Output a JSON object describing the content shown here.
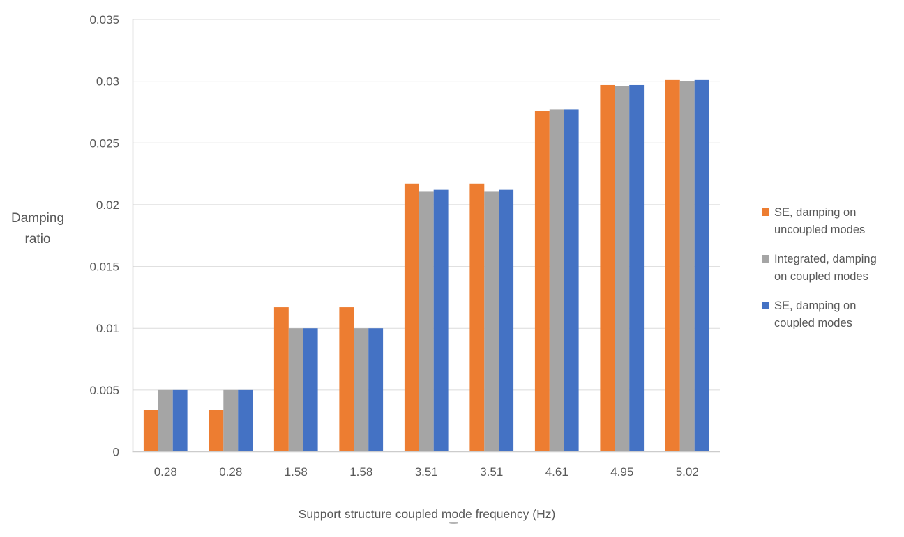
{
  "figure": {
    "background": "#FFFFFF",
    "text_color": "#595959",
    "gridline_color": "#DBDBDB",
    "axis_line_color": "#CCCCCC"
  },
  "chart_data": {
    "type": "bar",
    "title": "",
    "xlabel": "Support structure coupled mode frequency (Hz)",
    "ylabel": "Damping ratio",
    "ylabel_lines": [
      "Damping",
      "ratio"
    ],
    "categories": [
      "0.28",
      "0.28",
      "1.58",
      "1.58",
      "3.51",
      "3.51",
      "4.61",
      "4.95",
      "5.02"
    ],
    "series": [
      {
        "name": "SE, damping on uncoupled modes",
        "label_lines": [
          "SE, damping on",
          "uncoupled modes"
        ],
        "color": "#ED7D31",
        "values": [
          0.0034,
          0.0034,
          0.0117,
          0.0117,
          0.0217,
          0.0217,
          0.0276,
          0.0297,
          0.0301
        ]
      },
      {
        "name": "Integrated, damping on coupled modes",
        "label_lines": [
          "Integrated, damping",
          "on coupled modes"
        ],
        "color": "#A5A5A5",
        "values": [
          0.005,
          0.005,
          0.01,
          0.01,
          0.0211,
          0.0211,
          0.0277,
          0.0296,
          0.03
        ]
      },
      {
        "name": "SE, damping on coupled modes",
        "label_lines": [
          "SE, damping on",
          "coupled modes"
        ],
        "color": "#4472C4",
        "values": [
          0.005,
          0.005,
          0.01,
          0.01,
          0.0212,
          0.0212,
          0.0277,
          0.0297,
          0.0301
        ]
      }
    ],
    "ylim": [
      0,
      0.035
    ],
    "yticks": [
      {
        "value": 0,
        "label": "0"
      },
      {
        "value": 0.005,
        "label": "0.005"
      },
      {
        "value": 0.01,
        "label": "0.01"
      },
      {
        "value": 0.015,
        "label": "0.015"
      },
      {
        "value": 0.02,
        "label": "0.02"
      },
      {
        "value": 0.025,
        "label": "0.025"
      },
      {
        "value": 0.03,
        "label": "0.03"
      },
      {
        "value": 0.035,
        "label": "0.035"
      }
    ],
    "grid": true,
    "legend_position": "right"
  }
}
